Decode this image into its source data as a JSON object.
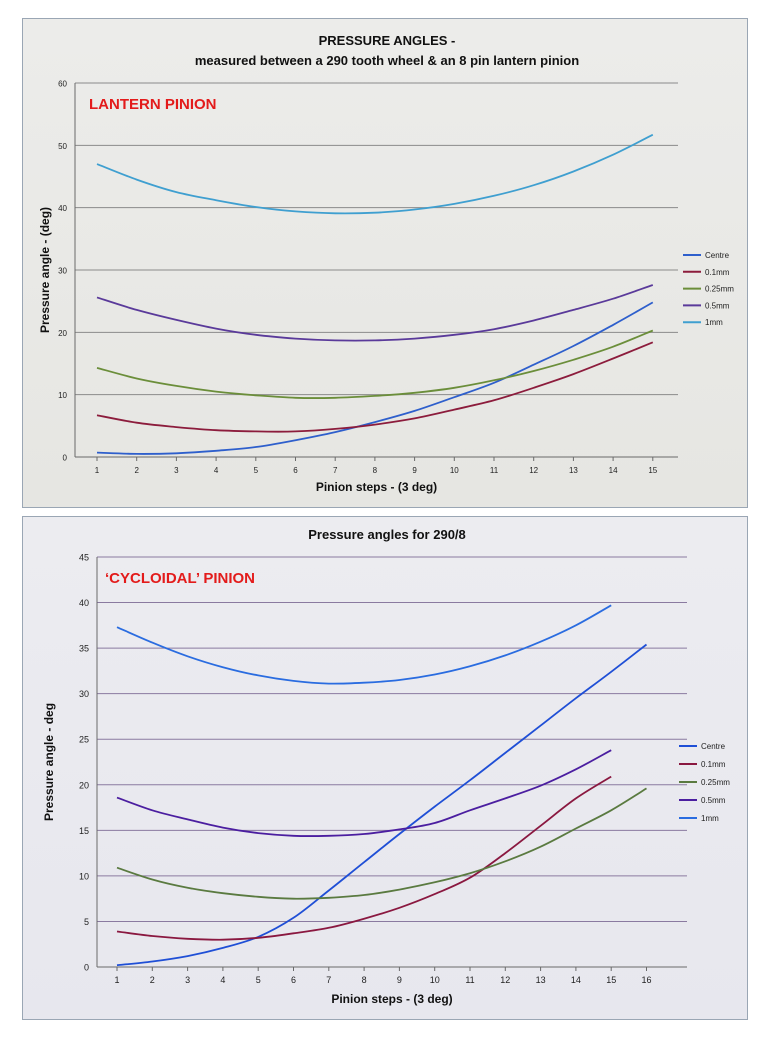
{
  "chart_data": [
    {
      "type": "line",
      "title_line1": "PRESSURE ANGLES -",
      "title_line2": "measured between a 290 tooth wheel & an 8 pin lantern pinion",
      "annotation": "LANTERN PINION",
      "annotation_color": "#e31b1b",
      "xlabel": "Pinion steps - (3 deg)",
      "ylabel": "Pressure angle - (deg)",
      "x": [
        1,
        2,
        3,
        4,
        5,
        6,
        7,
        8,
        9,
        10,
        11,
        12,
        13,
        14,
        15
      ],
      "xticks": [
        "1",
        "2",
        "3",
        "4",
        "5",
        "6",
        "7",
        "8",
        "9",
        "10",
        "11",
        "12",
        "13",
        "14",
        "15"
      ],
      "yticks": [
        "0",
        "10",
        "20",
        "30",
        "40",
        "50",
        "60"
      ],
      "ylim": [
        0,
        60
      ],
      "series": [
        {
          "name": "Centre",
          "color": "#2e5fcc",
          "values": [
            0.7,
            0.5,
            0.6,
            1.0,
            1.6,
            2.7,
            4.0,
            5.6,
            7.4,
            9.6,
            11.9,
            14.8,
            17.8,
            21.2,
            24.8
          ]
        },
        {
          "name": "0.1mm",
          "color": "#8c1c3c",
          "values": [
            6.7,
            5.5,
            4.8,
            4.3,
            4.1,
            4.1,
            4.5,
            5.2,
            6.2,
            7.6,
            9.1,
            11.1,
            13.3,
            15.8,
            18.4
          ]
        },
        {
          "name": "0.25mm",
          "color": "#6b8e3a",
          "values": [
            14.3,
            12.6,
            11.4,
            10.5,
            9.9,
            9.5,
            9.5,
            9.8,
            10.3,
            11.1,
            12.3,
            13.8,
            15.6,
            17.7,
            20.3
          ]
        },
        {
          "name": "0.5mm",
          "color": "#5a3a9a",
          "values": [
            25.6,
            23.6,
            22.0,
            20.6,
            19.6,
            19.0,
            18.7,
            18.7,
            19.0,
            19.6,
            20.5,
            21.9,
            23.6,
            25.4,
            27.6
          ]
        },
        {
          "name": "1mm",
          "color": "#3f9fd0",
          "values": [
            47.0,
            44.5,
            42.5,
            41.2,
            40.1,
            39.4,
            39.1,
            39.2,
            39.7,
            40.6,
            41.9,
            43.6,
            45.8,
            48.5,
            51.7
          ]
        }
      ]
    },
    {
      "type": "line",
      "title": "Pressure angles for 290/8",
      "annotation": "‘CYCLOIDAL’ PINION",
      "annotation_color": "#e31b1b",
      "xlabel": "Pinion steps - (3 deg)",
      "ylabel": "Pressure angle - deg",
      "xticks": [
        "1",
        "2",
        "3",
        "4",
        "5",
        "6",
        "7",
        "8",
        "9",
        "10",
        "11",
        "12",
        "13",
        "14",
        "15",
        "16"
      ],
      "yticks": [
        "0",
        "5",
        "10",
        "15",
        "20",
        "25",
        "30",
        "35",
        "40",
        "45"
      ],
      "ylim": [
        0,
        45
      ],
      "series": [
        {
          "name": "Centre",
          "color": "#1f4fd6",
          "x": [
            1,
            2,
            3,
            4,
            5,
            6,
            7,
            8,
            9,
            10,
            11,
            12,
            13,
            14,
            15,
            16
          ],
          "values": [
            0.2,
            0.6,
            1.2,
            2.1,
            3.3,
            5.4,
            8.4,
            11.5,
            14.6,
            17.6,
            20.5,
            23.5,
            26.5,
            29.5,
            32.4,
            35.4
          ]
        },
        {
          "name": "0.1mm",
          "color": "#8a1840",
          "x": [
            1,
            2,
            3,
            4,
            5,
            6,
            7,
            8,
            9,
            10,
            11,
            12,
            13,
            14,
            15
          ],
          "values": [
            3.9,
            3.4,
            3.1,
            3.0,
            3.2,
            3.7,
            4.3,
            5.3,
            6.5,
            8.0,
            9.8,
            12.5,
            15.5,
            18.5,
            20.9
          ]
        },
        {
          "name": "0.25mm",
          "color": "#5a7a40",
          "x": [
            1,
            2,
            3,
            4,
            5,
            6,
            7,
            8,
            9,
            10,
            11,
            12,
            13,
            14,
            15,
            16
          ],
          "values": [
            10.9,
            9.6,
            8.7,
            8.1,
            7.7,
            7.5,
            7.6,
            7.9,
            8.5,
            9.3,
            10.3,
            11.6,
            13.2,
            15.2,
            17.2,
            19.6
          ]
        },
        {
          "name": "0.5mm",
          "color": "#4b1ea0",
          "x": [
            1,
            2,
            3,
            4,
            5,
            6,
            7,
            8,
            9,
            10,
            11,
            12,
            13,
            14,
            15
          ],
          "values": [
            18.6,
            17.2,
            16.2,
            15.3,
            14.7,
            14.4,
            14.4,
            14.6,
            15.1,
            15.8,
            17.2,
            18.5,
            19.9,
            21.7,
            23.8
          ]
        },
        {
          "name": "1mm",
          "color": "#2a6ce0",
          "x": [
            1,
            2,
            3,
            4,
            5,
            6,
            7,
            8,
            9,
            10,
            11,
            12,
            13,
            14,
            15
          ],
          "values": [
            37.3,
            35.6,
            34.1,
            32.9,
            32.0,
            31.4,
            31.1,
            31.2,
            31.5,
            32.1,
            33.0,
            34.2,
            35.7,
            37.5,
            39.7
          ]
        }
      ]
    }
  ]
}
